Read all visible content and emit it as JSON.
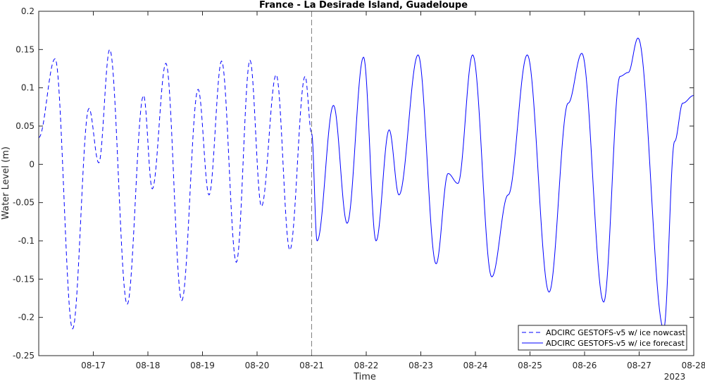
{
  "chart_data": {
    "type": "line",
    "title": "France - La Desirade Island, Guadeloupe",
    "xlabel": "Time",
    "ylabel": "Water Level (m)",
    "year_label": "2023",
    "x_tick_labels": [
      "08-17",
      "08-18",
      "08-19",
      "08-20",
      "08-21",
      "08-22",
      "08-23",
      "08-24",
      "08-25",
      "08-26",
      "08-27",
      "08-28"
    ],
    "x_tick_days": [
      17,
      18,
      19,
      20,
      21,
      22,
      23,
      24,
      25,
      26,
      27,
      28
    ],
    "xlim": [
      16.0,
      28.0
    ],
    "ylim": [
      -0.25,
      0.2
    ],
    "y_ticks": [
      -0.25,
      -0.2,
      -0.15,
      -0.1,
      -0.05,
      0,
      0.05,
      0.1,
      0.15,
      0.2
    ],
    "y_tick_labels": [
      "-0.25",
      "-0.2",
      "-0.15",
      "-0.1",
      "-0.05",
      "0",
      "0.05",
      "0.1",
      "0.15",
      "0.2"
    ],
    "nowcast_end_day": 21.0,
    "grid": false,
    "legend_position": "bottom-right",
    "line_color": "#0000ff",
    "series": [
      {
        "name": "ADCIRC GESTOFS-v5 w/ ice nowcast",
        "style": "dashed",
        "extrema": [
          [
            16.0,
            0.035
          ],
          [
            16.3,
            0.138
          ],
          [
            16.62,
            -0.215
          ],
          [
            16.92,
            0.073
          ],
          [
            17.1,
            0.002
          ],
          [
            17.3,
            0.15
          ],
          [
            17.62,
            -0.183
          ],
          [
            17.92,
            0.09
          ],
          [
            18.08,
            -0.032
          ],
          [
            18.33,
            0.132
          ],
          [
            18.62,
            -0.178
          ],
          [
            18.92,
            0.098
          ],
          [
            19.12,
            -0.04
          ],
          [
            19.35,
            0.135
          ],
          [
            19.62,
            -0.128
          ],
          [
            19.87,
            0.136
          ],
          [
            20.08,
            -0.055
          ],
          [
            20.35,
            0.117
          ],
          [
            20.6,
            -0.112
          ],
          [
            20.88,
            0.115
          ],
          [
            21.0,
            0.04
          ]
        ]
      },
      {
        "name": "ADCIRC GESTOFS-v5 w/ ice forecast",
        "style": "solid",
        "extrema": [
          [
            21.0,
            0.04
          ],
          [
            21.1,
            -0.1
          ],
          [
            21.4,
            0.077
          ],
          [
            21.65,
            -0.077
          ],
          [
            21.95,
            0.14
          ],
          [
            22.18,
            -0.1
          ],
          [
            22.42,
            0.045
          ],
          [
            22.6,
            -0.04
          ],
          [
            22.95,
            0.143
          ],
          [
            23.28,
            -0.13
          ],
          [
            23.5,
            -0.012
          ],
          [
            23.68,
            -0.025
          ],
          [
            23.95,
            0.143
          ],
          [
            24.3,
            -0.147
          ],
          [
            24.6,
            -0.04
          ],
          [
            24.95,
            0.143
          ],
          [
            25.35,
            -0.167
          ],
          [
            25.7,
            0.08
          ],
          [
            25.95,
            0.145
          ],
          [
            26.35,
            -0.18
          ],
          [
            26.65,
            0.115
          ],
          [
            26.8,
            0.12
          ],
          [
            26.98,
            0.165
          ],
          [
            27.45,
            -0.215
          ],
          [
            27.65,
            0.03
          ],
          [
            27.8,
            0.08
          ],
          [
            28.0,
            0.09
          ]
        ]
      }
    ]
  }
}
